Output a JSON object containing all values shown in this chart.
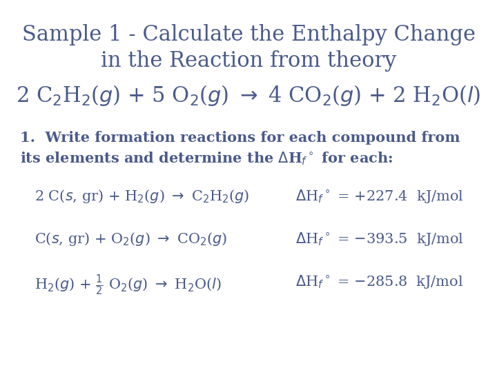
{
  "bg_color": "#ffffff",
  "text_color": "#4a5a8a",
  "title_line1": "Sample 1 - Calculate the Enthalpy Change",
  "title_line2": "in the Reaction from theory",
  "title_fontsize": 22,
  "reaction_main_fontsize": 22,
  "instruction_fontsize": 15,
  "row_fontsize": 15,
  "figsize": [
    7.2,
    5.4
  ],
  "dpi": 100
}
